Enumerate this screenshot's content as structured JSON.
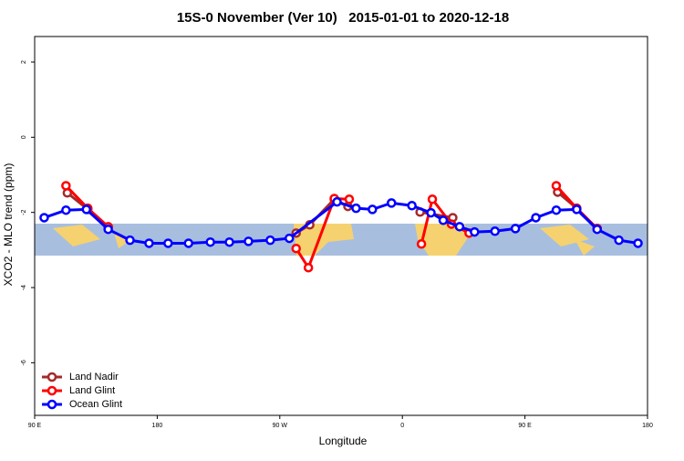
{
  "chart_data": {
    "type": "line",
    "title": "15S-0 November (Ver 10)   2015-01-01 to 2020-12-18",
    "xlabel": "Longitude",
    "ylabel": "XCO2 - MLO trend (ppm)",
    "xlim": [
      90,
      540
    ],
    "ylim": [
      -7.4,
      2.68
    ],
    "xticks": [
      {
        "value": 90,
        "label": "90 E"
      },
      180,
      {
        "value": 270,
        "label": "90 W"
      },
      {
        "value": 360,
        "label": "0"
      },
      {
        "value": 450,
        "label": "90 E"
      },
      {
        "value": 540,
        "label": "180"
      }
    ],
    "yticks": [
      -6,
      -4,
      -2,
      0,
      2
    ],
    "legend": "bottom-left",
    "series": [
      {
        "name": "Land Nadir",
        "color": "#a52a2a",
        "x": [
          114,
          129,
          144,
          null,
          282,
          292,
          310,
          320,
          null,
          373,
          397,
          null,
          474,
          488,
          503
        ],
        "values": [
          -1.48,
          -1.92,
          -2.4,
          null,
          -2.55,
          -2.33,
          -1.65,
          -1.84,
          null,
          -1.99,
          -2.14,
          null,
          -1.46,
          -1.89,
          -2.43
        ]
      },
      {
        "name": "Land Glint",
        "color": "#ff0000",
        "x": [
          113,
          129,
          144,
          null,
          282,
          291,
          310,
          321,
          null,
          374,
          382,
          396,
          409,
          null,
          473,
          488,
          503
        ],
        "values": [
          -1.29,
          -1.89,
          -2.38,
          null,
          -2.96,
          -3.47,
          -1.63,
          -1.65,
          null,
          -2.84,
          -1.65,
          -2.31,
          -2.55,
          null,
          -1.29,
          -1.89,
          -2.43
        ]
      },
      {
        "name": "Ocean Glint",
        "color": "#0000ff",
        "x": [
          97,
          113,
          128,
          144,
          160,
          174,
          188,
          203,
          219,
          233,
          247,
          263,
          277,
          312,
          326,
          338,
          352,
          367,
          381,
          390,
          402,
          413,
          428,
          443,
          458,
          473,
          488,
          503,
          519,
          533
        ],
        "values": [
          -2.14,
          -1.94,
          -1.92,
          -2.45,
          -2.74,
          -2.82,
          -2.82,
          -2.82,
          -2.79,
          -2.79,
          -2.77,
          -2.74,
          -2.69,
          -1.72,
          -1.89,
          -1.92,
          -1.75,
          -1.82,
          -2.01,
          -2.21,
          -2.38,
          -2.52,
          -2.5,
          -2.43,
          -2.14,
          -1.94,
          -1.92,
          -2.45,
          -2.74,
          -2.82
        ]
      }
    ]
  }
}
